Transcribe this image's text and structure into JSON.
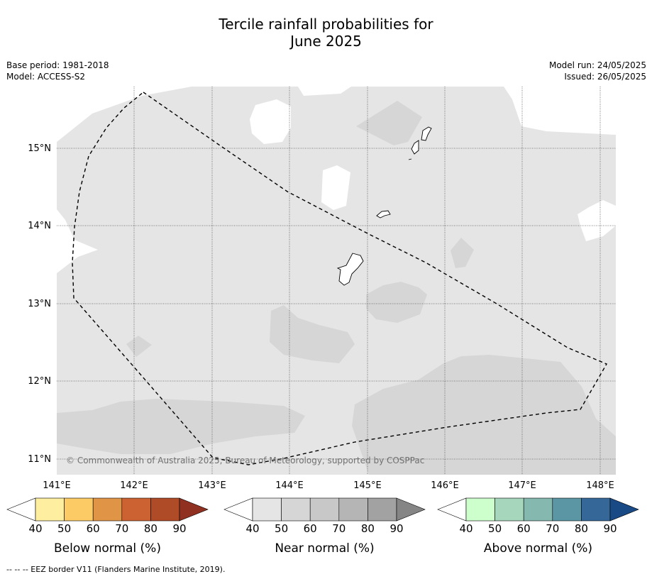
{
  "title_line1": "Tercile rainfall probabilities for",
  "title_line2": "June 2025",
  "meta_left": {
    "base_period": "Base period: 1981-2018",
    "model": "Model: ACCESS-S2"
  },
  "meta_right": {
    "model_run": "Model run: 24/05/2025",
    "issued": "Issued: 26/05/2025"
  },
  "map": {
    "lat_labels": [
      "15°N",
      "14°N",
      "13°N",
      "12°N",
      "11°N"
    ],
    "lon_labels": [
      "141°E",
      "142°E",
      "143°E",
      "144°E",
      "145°E",
      "146°E",
      "147°E",
      "148°E"
    ],
    "background_color": "#e5e5e5",
    "near_normal_50_color": "#d6d6d6",
    "copyright": "© Commonwealth of Australia 2025, Bureau of Meteorology, supported by COSPPac"
  },
  "legends": [
    {
      "label": "Below normal (%)",
      "ticks": [
        "40",
        "50",
        "60",
        "70",
        "80",
        "90"
      ],
      "colors": [
        "#ffffff",
        "#fdeea0",
        "#fdcb66",
        "#e09446",
        "#cc6232",
        "#b04b27",
        "#8f3020"
      ]
    },
    {
      "label": "Near normal (%)",
      "ticks": [
        "40",
        "50",
        "60",
        "70",
        "80",
        "90"
      ],
      "colors": [
        "#ffffff",
        "#e5e5e5",
        "#d6d6d6",
        "#c8c8c8",
        "#b5b5b5",
        "#a2a2a2",
        "#858585"
      ]
    },
    {
      "label": "Above normal (%)",
      "ticks": [
        "40",
        "50",
        "60",
        "70",
        "80",
        "90"
      ],
      "colors": [
        "#ffffff",
        "#ccffcc",
        "#a6d6bb",
        "#85b9b0",
        "#5a96a3",
        "#356899",
        "#194a85"
      ]
    }
  ],
  "footer": "--  --  -- EEZ border V11 (Flanders Marine Institute, 2019)."
}
